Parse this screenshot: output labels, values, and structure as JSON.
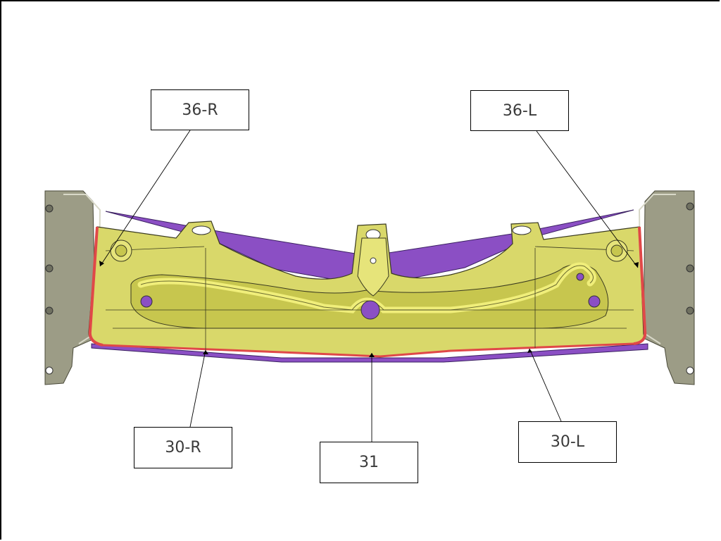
{
  "callouts": {
    "c36r": "36-R",
    "c36l": "36-L",
    "c30r": "30-R",
    "c31": "31",
    "c30l": "30-L"
  },
  "colors": {
    "panel": "#d9d86a",
    "panel_shade": "#c7c64e",
    "seam": "#f0ee7a",
    "flange_red": "#e04848",
    "purple": "#8b4fc4",
    "bracket": "#9c9c86",
    "bracket_dark": "#6f7060"
  }
}
